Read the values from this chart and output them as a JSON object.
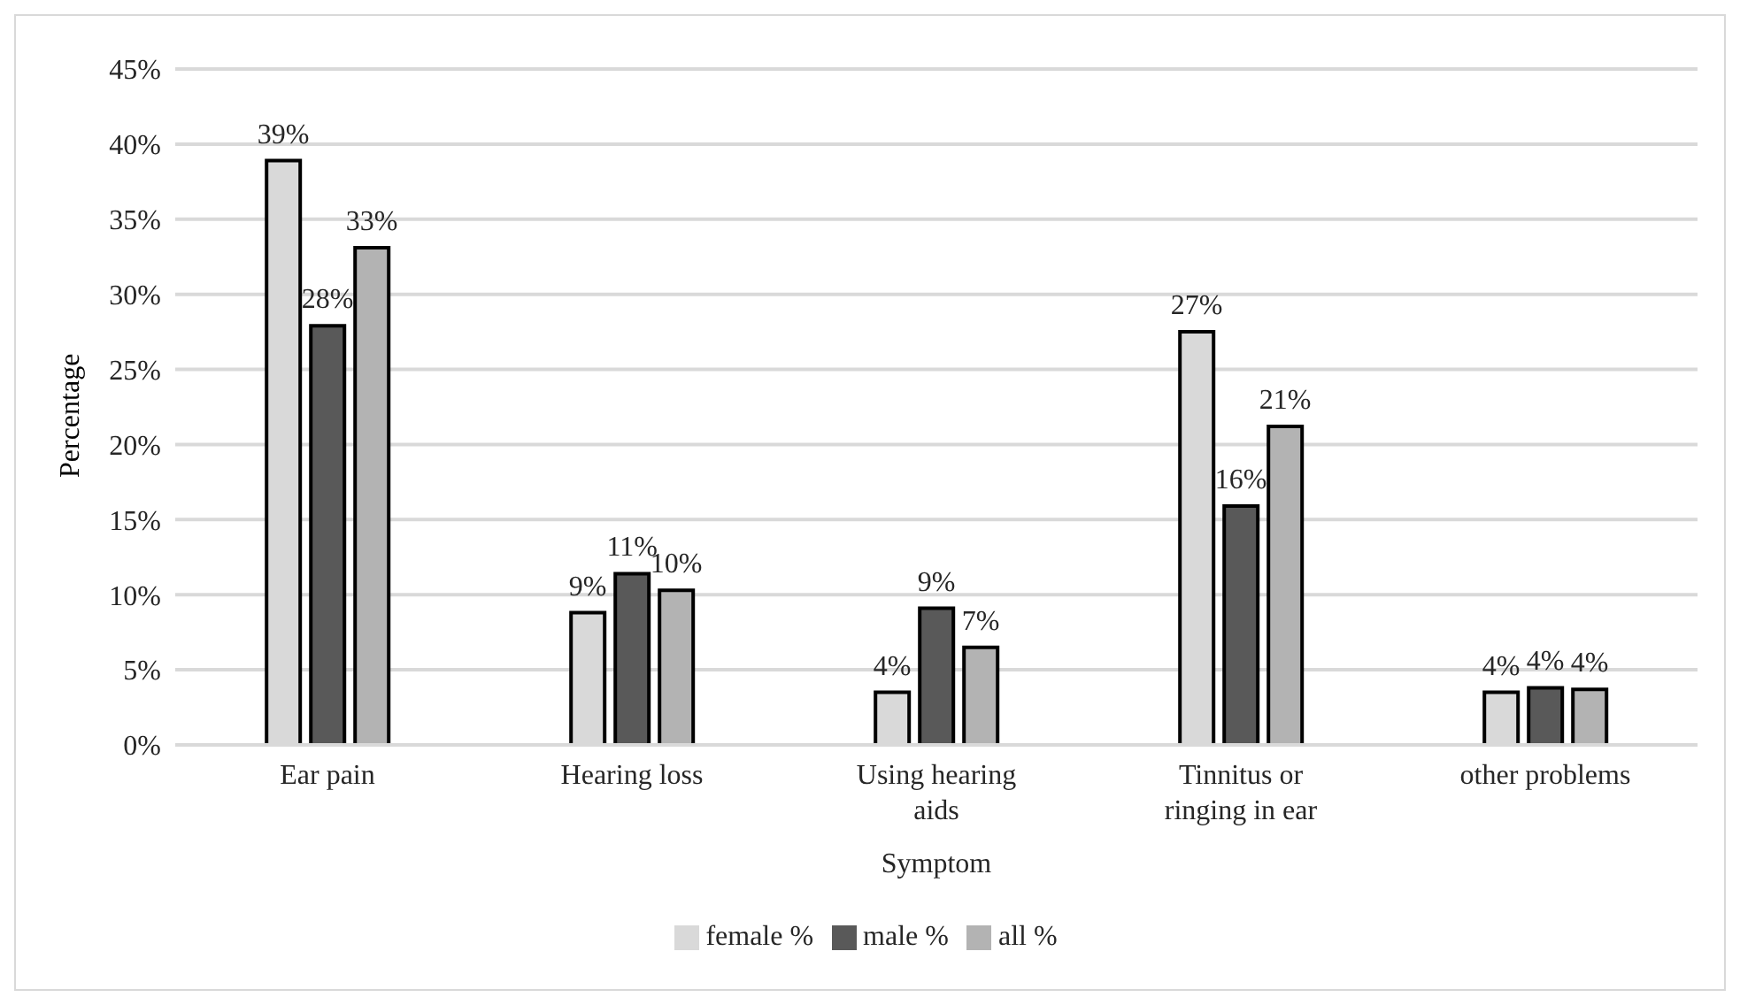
{
  "chart_data": {
    "type": "bar",
    "xlabel": "Symptom",
    "ylabel": "Percentage",
    "categories": [
      "Ear pain",
      "Hearing loss",
      "Using hearing aids",
      "Tinnitus or ringing in ear",
      "other problems"
    ],
    "series": [
      {
        "name": "female %",
        "color": "#d9d9d9",
        "values": [
          38.9,
          8.8,
          3.5,
          27.5,
          3.5
        ],
        "value_labels": [
          "39%",
          "9%",
          "4%",
          "27%",
          "4%"
        ]
      },
      {
        "name": "male %",
        "color": "#595959",
        "values": [
          27.9,
          11.4,
          9.1,
          15.9,
          3.8
        ],
        "value_labels": [
          "28%",
          "11%",
          "9%",
          "16%",
          "4%"
        ]
      },
      {
        "name": "all %",
        "color": "#b3b3b3",
        "values": [
          33.1,
          10.3,
          6.5,
          21.2,
          3.7
        ],
        "value_labels": [
          "33%",
          "10%",
          "7%",
          "21%",
          "4%"
        ]
      }
    ],
    "ylim": [
      0,
      45
    ],
    "yticks": [
      {
        "value": 0,
        "label": "0%"
      },
      {
        "value": 5,
        "label": "5%"
      },
      {
        "value": 10,
        "label": "10%"
      },
      {
        "value": 15,
        "label": "15%"
      },
      {
        "value": 20,
        "label": "20%"
      },
      {
        "value": 25,
        "label": "25%"
      },
      {
        "value": 30,
        "label": "30%"
      },
      {
        "value": 35,
        "label": "35%"
      },
      {
        "value": 40,
        "label": "40%"
      },
      {
        "value": 45,
        "label": "45%"
      }
    ],
    "grid": "y",
    "legend": "bottom"
  }
}
